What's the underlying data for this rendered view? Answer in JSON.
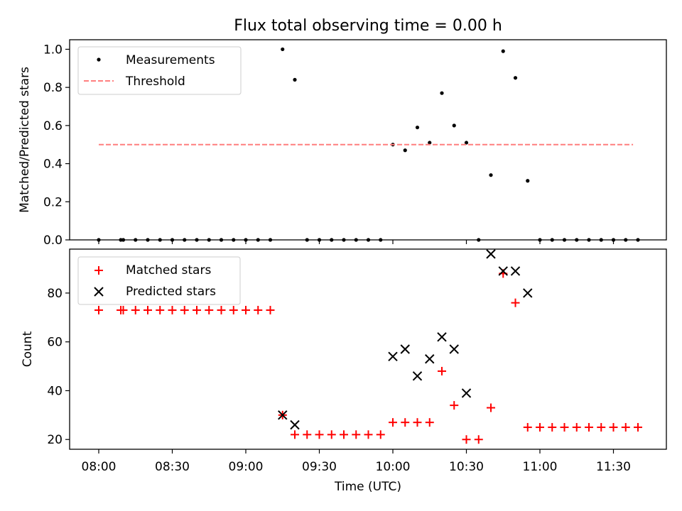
{
  "title": "Flux total observing time = 0.00 h",
  "chart_data": [
    {
      "type": "scatter",
      "ylabel": "Matched/Predicted stars",
      "xlabel": "",
      "ylim": [
        0,
        1.05
      ],
      "yticks": [
        "0.0",
        "0.2",
        "0.4",
        "0.6",
        "0.8",
        "1.0"
      ],
      "grid": false,
      "legend_position": "upper-left",
      "series": [
        {
          "name": "Measurements",
          "marker": "dot",
          "color": "#000000",
          "points": [
            [
              "08:00",
              0
            ],
            [
              "08:09",
              0
            ],
            [
              "08:10",
              0
            ],
            [
              "08:15",
              0
            ],
            [
              "08:20",
              0
            ],
            [
              "08:25",
              0
            ],
            [
              "08:30",
              0
            ],
            [
              "08:35",
              0
            ],
            [
              "08:40",
              0
            ],
            [
              "08:45",
              0
            ],
            [
              "08:50",
              0
            ],
            [
              "08:55",
              0
            ],
            [
              "09:00",
              0
            ],
            [
              "09:05",
              0
            ],
            [
              "09:10",
              0
            ],
            [
              "09:15",
              1.0
            ],
            [
              "09:20",
              0.84
            ],
            [
              "09:25",
              0
            ],
            [
              "09:30",
              0
            ],
            [
              "09:35",
              0
            ],
            [
              "09:40",
              0
            ],
            [
              "09:45",
              0
            ],
            [
              "09:50",
              0
            ],
            [
              "09:55",
              0
            ],
            [
              "10:00",
              0.5
            ],
            [
              "10:05",
              0.47
            ],
            [
              "10:10",
              0.59
            ],
            [
              "10:15",
              0.51
            ],
            [
              "10:20",
              0.77
            ],
            [
              "10:25",
              0.6
            ],
            [
              "10:30",
              0.51
            ],
            [
              "10:35",
              0
            ],
            [
              "10:40",
              0.34
            ],
            [
              "10:45",
              0.99
            ],
            [
              "10:50",
              0.85
            ],
            [
              "10:55",
              0.31
            ],
            [
              "11:00",
              0
            ],
            [
              "11:05",
              0
            ],
            [
              "11:10",
              0
            ],
            [
              "11:15",
              0
            ],
            [
              "11:20",
              0
            ],
            [
              "11:25",
              0
            ],
            [
              "11:30",
              0
            ],
            [
              "11:35",
              0
            ],
            [
              "11:40",
              0
            ]
          ]
        },
        {
          "name": "Threshold",
          "marker": "dashed-line",
          "color": "#ff7f7f",
          "points": [
            [
              "08:00",
              0.5
            ],
            [
              "11:38",
              0.5
            ]
          ]
        }
      ]
    },
    {
      "type": "scatter",
      "ylabel": "Count",
      "xlabel": "Time (UTC)",
      "ylim": [
        16,
        98
      ],
      "yticks": [
        "20",
        "40",
        "60",
        "80"
      ],
      "xticks": [
        "08:00",
        "08:30",
        "09:00",
        "09:30",
        "10:00",
        "10:30",
        "11:00",
        "11:30"
      ],
      "grid": false,
      "legend_position": "upper-left",
      "series": [
        {
          "name": "Matched stars",
          "marker": "plus",
          "color": "#ff0000",
          "points": [
            [
              "08:00",
              73
            ],
            [
              "08:09",
              73
            ],
            [
              "08:10",
              73
            ],
            [
              "08:15",
              73
            ],
            [
              "08:20",
              73
            ],
            [
              "08:25",
              73
            ],
            [
              "08:30",
              73
            ],
            [
              "08:35",
              73
            ],
            [
              "08:40",
              73
            ],
            [
              "08:45",
              73
            ],
            [
              "08:50",
              73
            ],
            [
              "08:55",
              73
            ],
            [
              "09:00",
              73
            ],
            [
              "09:05",
              73
            ],
            [
              "09:10",
              73
            ],
            [
              "09:15",
              30
            ],
            [
              "09:20",
              22
            ],
            [
              "09:25",
              22
            ],
            [
              "09:30",
              22
            ],
            [
              "09:35",
              22
            ],
            [
              "09:40",
              22
            ],
            [
              "09:45",
              22
            ],
            [
              "09:50",
              22
            ],
            [
              "09:55",
              22
            ],
            [
              "10:00",
              27
            ],
            [
              "10:05",
              27
            ],
            [
              "10:10",
              27
            ],
            [
              "10:15",
              27
            ],
            [
              "10:20",
              48
            ],
            [
              "10:25",
              34
            ],
            [
              "10:30",
              20
            ],
            [
              "10:35",
              20
            ],
            [
              "10:40",
              33
            ],
            [
              "10:45",
              88
            ],
            [
              "10:50",
              76
            ],
            [
              "10:55",
              25
            ],
            [
              "11:00",
              25
            ],
            [
              "11:05",
              25
            ],
            [
              "11:10",
              25
            ],
            [
              "11:15",
              25
            ],
            [
              "11:20",
              25
            ],
            [
              "11:25",
              25
            ],
            [
              "11:30",
              25
            ],
            [
              "11:35",
              25
            ],
            [
              "11:40",
              25
            ]
          ]
        },
        {
          "name": "Predicted stars",
          "marker": "x",
          "color": "#000000",
          "points": [
            [
              "09:15",
              30
            ],
            [
              "09:20",
              26
            ],
            [
              "10:00",
              54
            ],
            [
              "10:05",
              57
            ],
            [
              "10:10",
              46
            ],
            [
              "10:15",
              53
            ],
            [
              "10:20",
              62
            ],
            [
              "10:25",
              57
            ],
            [
              "10:30",
              39
            ],
            [
              "10:40",
              96
            ],
            [
              "10:45",
              89
            ],
            [
              "10:50",
              89
            ],
            [
              "10:55",
              80
            ]
          ]
        }
      ]
    }
  ]
}
